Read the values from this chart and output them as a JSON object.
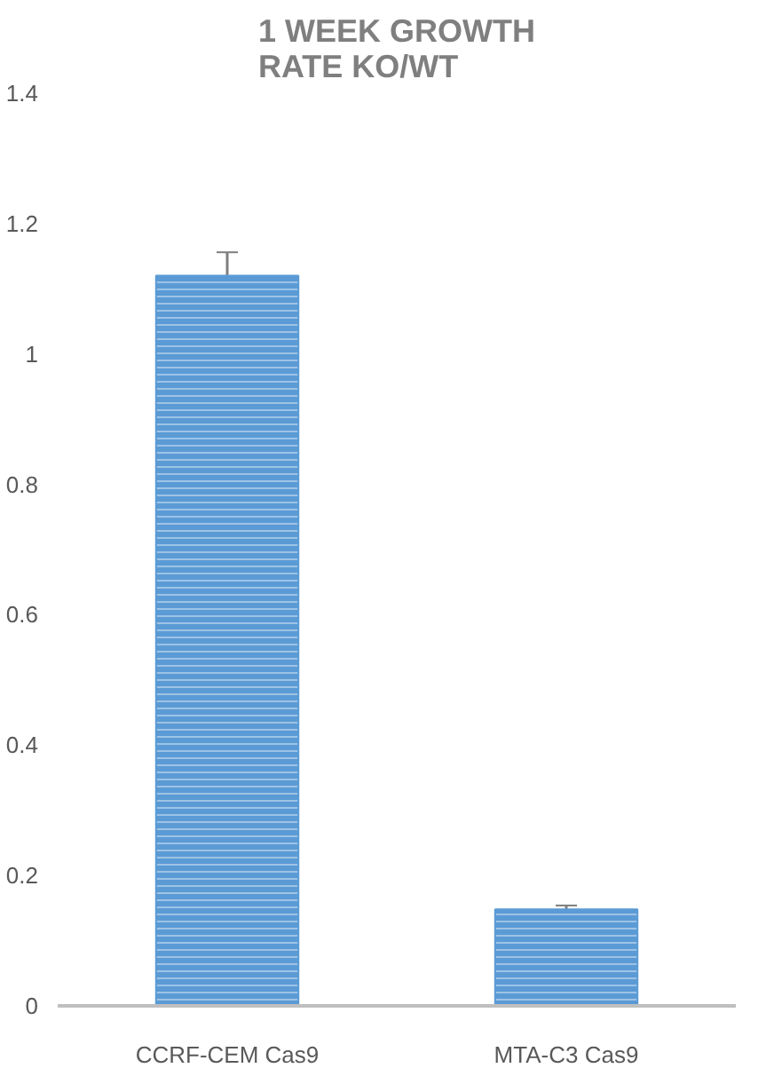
{
  "chart_data": {
    "type": "bar",
    "title": "1 WEEK GROWTH RATE KO/WT",
    "categories": [
      "CCRF-CEM Cas9",
      "MTA-C3 Cas9"
    ],
    "values": [
      1.12,
      0.148
    ],
    "errors": [
      0.036,
      0.006
    ],
    "color": "#5b9bd5",
    "ylim": [
      0,
      1.4
    ],
    "yticks": [
      0,
      0.2,
      0.4,
      0.6,
      0.8,
      1,
      1.2,
      1.4
    ],
    "grid": false
  }
}
